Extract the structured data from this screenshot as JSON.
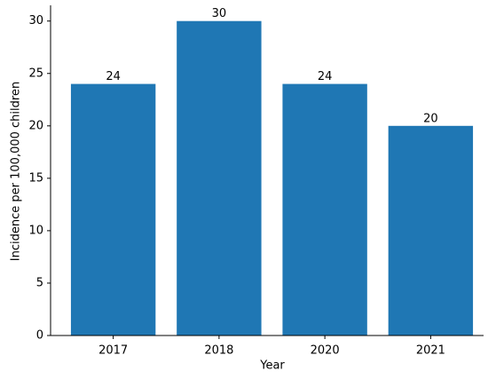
{
  "chart_data": {
    "type": "bar",
    "x_label": "Year",
    "y_label": "Incidence per 100,000 children",
    "categories": [
      "2017",
      "2018",
      "2020",
      "2021"
    ],
    "values": [
      24,
      30,
      24,
      20
    ],
    "color": "#1f77b4",
    "ylim": [
      0,
      31.5
    ],
    "yticks": [
      0,
      5,
      10,
      15,
      20,
      25,
      30
    ],
    "grid": false,
    "data_labels": true
  }
}
